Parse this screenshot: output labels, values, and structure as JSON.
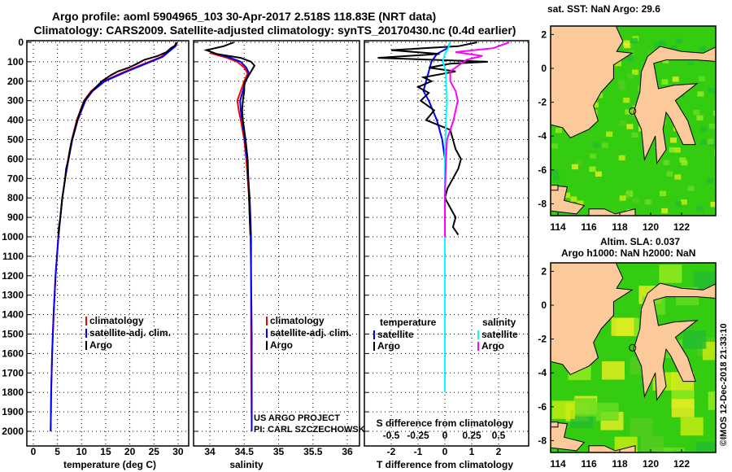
{
  "title_line1": "Argo profile: aoml 5904965_103 30-Apr-2017 2.518S 118.83E (NRT data)",
  "title_line2": "Climatology: CARS2009. Satellite-adjusted climatology: synTS_20170430.nc (0.4d earlier)",
  "colors": {
    "climatology": "#ff0000",
    "satellite": "#0000ff",
    "argo": "#000000",
    "sal_satellite": "#00ffff",
    "sal_argo": "#ff00ff",
    "land": "#fcc99a",
    "sea": "#33cc11"
  },
  "chart_data": [
    {
      "type": "line",
      "id": "temperature",
      "xlabel": "temperature (deg C)",
      "ylabel": "",
      "xlim": [
        -1,
        31
      ],
      "ylim": [
        2060,
        0
      ],
      "xticks": [
        "0",
        "5",
        "10",
        "15",
        "20",
        "25",
        "30"
      ],
      "xtick_values": [
        0,
        5,
        10,
        15,
        20,
        25,
        30
      ],
      "yticks": [
        "0",
        "100",
        "200",
        "300",
        "400",
        "500",
        "600",
        "700",
        "800",
        "900",
        "1000",
        "1100",
        "1200",
        "1300",
        "1400",
        "1500",
        "1600",
        "1700",
        "1800",
        "1900",
        "2000"
      ],
      "legend": [
        "climatology",
        "satellite-adj. clim.",
        "Argo"
      ],
      "series": [
        {
          "name": "climatology",
          "depth": [
            0,
            20,
            50,
            75,
            100,
            150,
            200,
            250,
            300,
            400,
            500,
            600,
            700,
            800,
            900,
            1000,
            1200,
            1400,
            1600,
            1800,
            2000
          ],
          "values": [
            29.6,
            29.3,
            27.8,
            26.5,
            24,
            19,
            14.5,
            12,
            10.5,
            9,
            8,
            7.2,
            6.6,
            6,
            5.6,
            5.2,
            4.6,
            4.2,
            3.9,
            3.7,
            3.6
          ]
        },
        {
          "name": "satellite-adj. clim.",
          "depth": [
            0,
            20,
            50,
            75,
            100,
            150,
            200,
            250,
            300,
            400,
            500,
            600,
            700,
            800,
            900,
            1000,
            1200,
            1400,
            1600,
            1800,
            2000
          ],
          "values": [
            29.8,
            29.5,
            28,
            26.8,
            24.3,
            19.4,
            14.8,
            12.3,
            10.8,
            9.2,
            8.1,
            7.3,
            6.6,
            6,
            5.6,
            5.2,
            4.6,
            4.2,
            3.9,
            3.7,
            3.6
          ]
        },
        {
          "name": "Argo",
          "depth": [
            0,
            15,
            30,
            50,
            70,
            90,
            110,
            130,
            150,
            170,
            200,
            230,
            260,
            300,
            350,
            400,
            450,
            500,
            550,
            600,
            650,
            700,
            750,
            800,
            850,
            900,
            950,
            990
          ],
          "values": [
            29.7,
            29.5,
            28.5,
            27.6,
            25.8,
            23,
            21.5,
            19.8,
            17.5,
            16,
            14.2,
            13,
            11.8,
            10.6,
            9.8,
            9.1,
            8.6,
            8,
            7.6,
            7.3,
            6.8,
            6.6,
            6.3,
            6,
            5.8,
            5.6,
            5.3,
            5.2
          ]
        }
      ]
    },
    {
      "type": "line",
      "id": "salinity",
      "xlabel": "salinity",
      "xlim": [
        33.75,
        36.2
      ],
      "ylim": [
        2060,
        0
      ],
      "xticks": [
        "34",
        "34.5",
        "35",
        "35.5",
        "36"
      ],
      "xtick_values": [
        34,
        34.5,
        35,
        35.5,
        36
      ],
      "legend": [
        "climatology",
        "satellite-adj. clim.",
        "Argo"
      ],
      "annotation": [
        "US ARGO PROJECT",
        "PI: CARL SZCZECHOWSKI"
      ],
      "series": [
        {
          "name": "climatology",
          "depth": [
            55,
            80,
            100,
            130,
            160,
            200,
            250,
            300,
            350,
            400,
            500,
            600,
            700,
            800,
            900,
            1000,
            1200,
            1500,
            2000
          ],
          "values": [
            34.0,
            34.25,
            34.4,
            34.5,
            34.55,
            34.5,
            34.45,
            34.4,
            34.42,
            34.45,
            34.5,
            34.53,
            34.55,
            34.57,
            34.58,
            34.59,
            34.6,
            34.6,
            34.61
          ]
        },
        {
          "name": "satellite-adj. clim.",
          "depth": [
            55,
            80,
            100,
            130,
            160,
            200,
            250,
            300,
            350,
            400,
            500,
            600,
            700,
            800,
            900,
            1000,
            1200,
            1500,
            2000
          ],
          "values": [
            34.05,
            34.3,
            34.45,
            34.53,
            34.57,
            34.52,
            34.48,
            34.44,
            34.45,
            34.47,
            34.51,
            34.54,
            34.56,
            34.58,
            34.59,
            34.6,
            34.6,
            34.61,
            34.61
          ]
        },
        {
          "name": "Argo",
          "depth": [
            0,
            20,
            40,
            60,
            80,
            100,
            120,
            150,
            180,
            210,
            250,
            300,
            350,
            400,
            450,
            500,
            600,
            700,
            800,
            900,
            990
          ],
          "values": [
            34.35,
            34.2,
            33.95,
            34.1,
            34.45,
            34.6,
            34.65,
            34.6,
            34.55,
            34.5,
            34.5,
            34.48,
            34.47,
            34.48,
            34.5,
            34.52,
            34.55,
            34.56,
            34.57,
            34.58,
            34.59
          ]
        }
      ]
    },
    {
      "type": "line",
      "id": "difference",
      "xlabel": "T difference from climatology",
      "xlabel2": "S difference from climatology",
      "xlim": [
        -3,
        3
      ],
      "ylim": [
        2060,
        0
      ],
      "xticks": [
        "-2",
        "-1",
        "0",
        "1",
        "2"
      ],
      "xtick_values": [
        -2,
        -1,
        0,
        1,
        2
      ],
      "xticks2": [
        "-0.5",
        "-0.25",
        "0",
        "0.25",
        "0.5"
      ],
      "xtick2_values": [
        -0.5,
        -0.25,
        0,
        0.25,
        0.5
      ],
      "legend_left_title": "temperature",
      "legend_right_title": "salinity",
      "legend": [
        "satellite",
        "Argo",
        "satellite",
        "Argo"
      ],
      "series": [
        {
          "name": "T satellite",
          "depth": [
            0,
            30,
            60,
            100,
            150,
            200,
            250,
            300,
            400,
            500,
            600,
            800,
            1000,
            1300
          ],
          "values": [
            0.2,
            0.1,
            -0.3,
            -0.5,
            -0.6,
            -0.7,
            -0.8,
            -0.6,
            -0.3,
            -0.1,
            0,
            0,
            0,
            0
          ]
        },
        {
          "name": "T Argo",
          "depth": [
            0,
            20,
            40,
            60,
            80,
            100,
            110,
            130,
            150,
            180,
            200,
            230,
            260,
            300,
            350,
            400,
            450,
            500,
            550,
            600,
            650,
            700,
            750,
            800,
            850,
            900,
            950,
            990
          ],
          "values": [
            1.2,
            0.5,
            -2,
            -0.2,
            -2.5,
            1.6,
            0.2,
            -0.6,
            0.4,
            -0.8,
            -0.5,
            -1,
            -0.6,
            -0.9,
            -0.4,
            -0.7,
            0.2,
            0.3,
            0.4,
            0.6,
            0.5,
            0.3,
            0.1,
            0,
            0.2,
            0.4,
            0.3,
            0.5
          ]
        },
        {
          "name": "S satellite",
          "depth": [
            0,
            30,
            60,
            100,
            150,
            200,
            300,
            400,
            600,
            800,
            1000,
            1400,
            1800
          ],
          "values": [
            0.05,
            0.03,
            0,
            -0.02,
            0.01,
            0.01,
            0.02,
            0.01,
            0,
            0,
            0,
            0,
            0
          ]
        },
        {
          "name": "S Argo",
          "depth": [
            0,
            30,
            50,
            70,
            90,
            110,
            130,
            150,
            200,
            250,
            300,
            350,
            400,
            450,
            500,
            600,
            800,
            1000
          ],
          "values": [
            0.6,
            0.45,
            0.1,
            0.35,
            0.2,
            0.15,
            0.1,
            0.05,
            0.05,
            0.1,
            0.12,
            0.1,
            0.08,
            0.05,
            0.02,
            0.01,
            0,
            0
          ]
        }
      ]
    }
  ],
  "map_top": {
    "title": "sat. SST: NaN Argo: 29.6",
    "xticks": [
      "114",
      "116",
      "118",
      "120",
      "122"
    ],
    "yticks": [
      "2",
      "0",
      "-2",
      "-4",
      "-6",
      "-8"
    ]
  },
  "map_bottom": {
    "title1": "Altim. SLA: 0.037",
    "title2": "Argo h1000: NaN h2000: NaN",
    "xticks": [
      "114",
      "116",
      "118",
      "120",
      "122"
    ],
    "yticks": [
      "2",
      "0",
      "-2",
      "-4",
      "-6",
      "-8"
    ]
  },
  "credit": "©IMOS 12-Dec-2018 21:33:10",
  "land": {
    "borneo": [
      [
        113.4,
        2.8
      ],
      [
        117.6,
        2.8
      ],
      [
        118.2,
        1.6
      ],
      [
        117.8,
        1.0
      ],
      [
        118.8,
        0.9
      ],
      [
        117.6,
        0.2
      ],
      [
        117.6,
        -0.6
      ],
      [
        116.8,
        -1.4
      ],
      [
        116.3,
        -2.2
      ],
      [
        116.6,
        -3.1
      ],
      [
        116.0,
        -3.6
      ],
      [
        114.8,
        -4.1
      ],
      [
        114.3,
        -3.5
      ],
      [
        113.4,
        -3.3
      ]
    ],
    "sulawesi": [
      [
        119.4,
        -0.2
      ],
      [
        119.8,
        0.7
      ],
      [
        120.6,
        1.3
      ],
      [
        122.0,
        1.0
      ],
      [
        123.4,
        0.9
      ],
      [
        124.3,
        1.3
      ],
      [
        124.3,
        0.4
      ],
      [
        123.0,
        0.5
      ],
      [
        121.0,
        0.5
      ],
      [
        120.2,
        0.3
      ],
      [
        120.5,
        -1.2
      ],
      [
        121.5,
        -1.0
      ],
      [
        123.0,
        -0.9
      ],
      [
        121.6,
        -1.9
      ],
      [
        122.4,
        -3.1
      ],
      [
        122.9,
        -4.5
      ],
      [
        122.1,
        -4.5
      ],
      [
        121.3,
        -3.0
      ],
      [
        121.0,
        -2.6
      ],
      [
        120.8,
        -3.6
      ],
      [
        121.0,
        -4.8
      ],
      [
        120.4,
        -5.6
      ],
      [
        120.3,
        -4.0
      ],
      [
        119.6,
        -5.4
      ],
      [
        119.4,
        -3.6
      ],
      [
        118.9,
        -2.6
      ],
      [
        119.3,
        -1.4
      ]
    ],
    "java": [
      [
        113.4,
        -6.9
      ],
      [
        114.6,
        -7.0
      ],
      [
        114.4,
        -7.8
      ],
      [
        115.7,
        -8.1
      ],
      [
        115.2,
        -8.6
      ],
      [
        113.4,
        -8.4
      ]
    ],
    "lombok": [
      [
        116.0,
        -8.3
      ],
      [
        117.0,
        -8.3
      ],
      [
        117.7,
        -8.6
      ],
      [
        119.0,
        -8.3
      ],
      [
        119.0,
        -8.8
      ],
      [
        116.0,
        -8.8
      ]
    ],
    "madura": [
      [
        112.6,
        -6.9
      ],
      [
        114.0,
        -6.9
      ],
      [
        114.0,
        -7.2
      ],
      [
        112.6,
        -7.2
      ]
    ]
  },
  "argo_position": [
    118.83,
    -2.518
  ]
}
